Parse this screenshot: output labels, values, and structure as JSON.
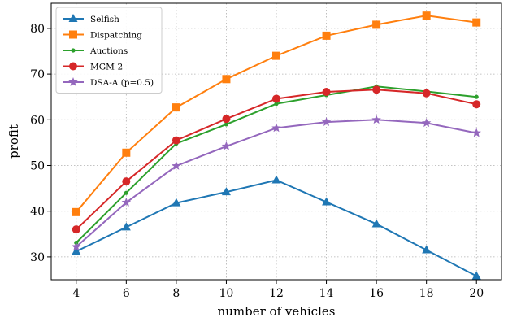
{
  "chart_data": {
    "type": "line",
    "xlabel": "number of vehicles",
    "ylabel": "profit",
    "x": [
      4,
      6,
      8,
      10,
      12,
      14,
      16,
      18,
      20
    ],
    "xlim": [
      3,
      21
    ],
    "ylim": [
      25,
      85.5
    ],
    "xticks": [
      4,
      6,
      8,
      10,
      12,
      14,
      16,
      18,
      20
    ],
    "yticks": [
      30,
      40,
      50,
      60,
      70,
      80
    ],
    "grid": true,
    "legend_position": "top-left",
    "series": [
      {
        "name": "Selfish",
        "color": "#1f77b4",
        "marker": "triangle",
        "values": [
          31.2,
          36.5,
          41.8,
          44.2,
          46.8,
          42.0,
          37.2,
          31.5,
          25.8
        ]
      },
      {
        "name": "Dispatching",
        "color": "#ff7f0e",
        "marker": "square",
        "values": [
          39.8,
          52.8,
          62.7,
          68.9,
          74.0,
          78.4,
          80.8,
          82.8,
          81.3
        ]
      },
      {
        "name": "Auctions",
        "color": "#2ca02c",
        "marker": "dot",
        "values": [
          33.1,
          44.0,
          54.8,
          59.0,
          63.5,
          65.4,
          67.3,
          66.2,
          65.0
        ]
      },
      {
        "name": "MGM-2",
        "color": "#d62728",
        "marker": "circle",
        "values": [
          36.0,
          46.5,
          55.5,
          60.2,
          64.6,
          66.1,
          66.6,
          65.8,
          63.4
        ]
      },
      {
        "name": "DSA-A (p=0.5)",
        "color": "#9467bd",
        "marker": "star",
        "values": [
          32.2,
          41.9,
          49.9,
          54.2,
          58.2,
          59.5,
          60.0,
          59.3,
          57.1
        ]
      }
    ]
  }
}
